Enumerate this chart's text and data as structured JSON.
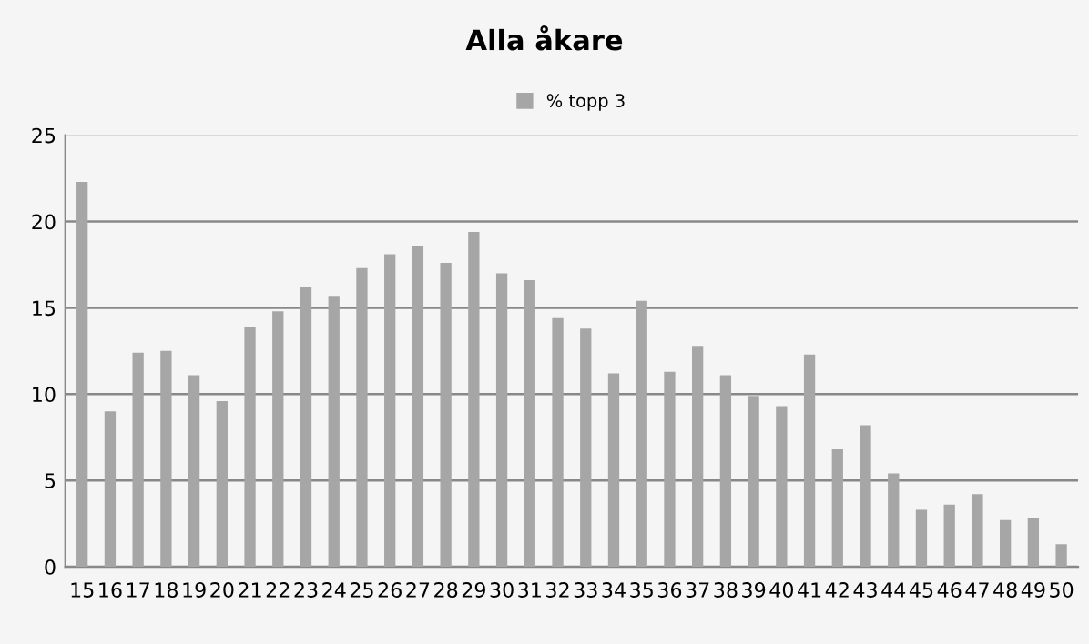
{
  "chart_data": {
    "type": "bar",
    "title": "Alla åkare",
    "categories": [
      "15",
      "16",
      "17",
      "18",
      "19",
      "20",
      "21",
      "22",
      "23",
      "24",
      "25",
      "26",
      "27",
      "28",
      "29",
      "30",
      "31",
      "32",
      "33",
      "34",
      "35",
      "36",
      "37",
      "38",
      "39",
      "40",
      "41",
      "42",
      "43",
      "44",
      "45",
      "46",
      "47",
      "48",
      "49",
      "50"
    ],
    "series": [
      {
        "name": "% topp 3",
        "color": "#a6a6a6",
        "values": [
          22.3,
          9.0,
          12.4,
          12.5,
          11.1,
          9.6,
          13.9,
          14.8,
          16.2,
          15.7,
          17.3,
          18.1,
          18.6,
          17.6,
          19.4,
          17.0,
          16.6,
          14.4,
          13.8,
          11.2,
          15.4,
          11.3,
          12.8,
          11.1,
          9.9,
          9.3,
          12.3,
          6.8,
          8.2,
          5.4,
          3.3,
          3.6,
          4.2,
          2.7,
          2.8,
          1.3
        ]
      }
    ],
    "ylim": [
      0,
      25
    ],
    "yticks": [
      0,
      5,
      10,
      15,
      20,
      25
    ],
    "grid": "y",
    "legend": "top"
  }
}
